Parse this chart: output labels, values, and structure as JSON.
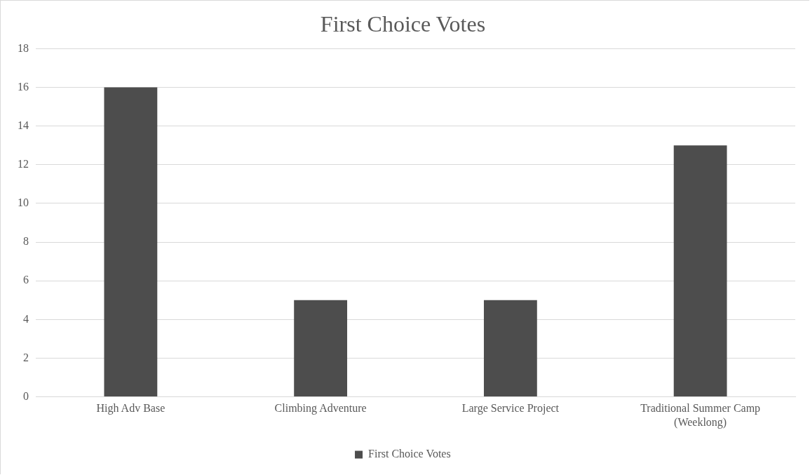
{
  "chart_data": {
    "type": "bar",
    "title": "First Choice Votes",
    "categories": [
      "High Adv Base",
      "Climbing Adventure",
      "Large Service Project",
      "Traditional Summer Camp (Weeklong)"
    ],
    "series": [
      {
        "name": "First Choice Votes",
        "color": "#4d4d4d",
        "values": [
          16,
          5,
          5,
          13
        ]
      }
    ],
    "ylim": [
      0,
      18
    ],
    "yticks": [
      0,
      2,
      4,
      6,
      8,
      10,
      12,
      14,
      16,
      18
    ],
    "grid": "y",
    "legend": "bottom"
  }
}
